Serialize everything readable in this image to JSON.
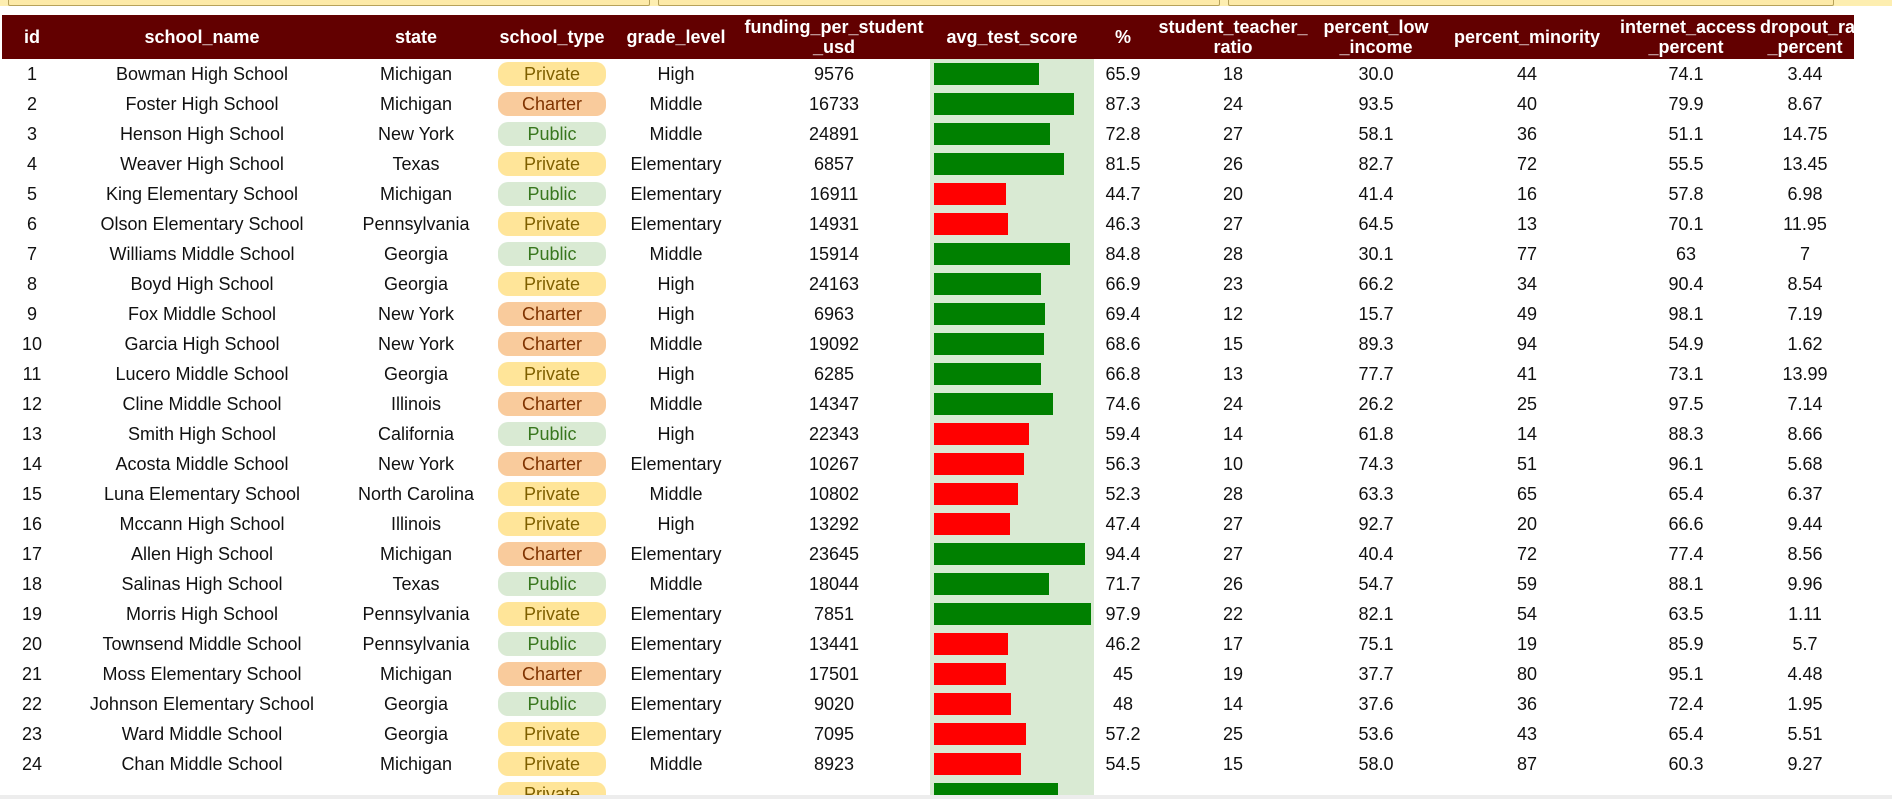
{
  "colors": {
    "header_bg": "#620000",
    "bar_pass": "#008000",
    "bar_fail": "#ff0000",
    "bar_track": "#d9ead3",
    "pill_private": "#ffe599",
    "pill_charter": "#f9cb9c",
    "pill_public": "#d9ead3",
    "text_private": "#7f6000",
    "text_charter": "#7f3300",
    "text_public": "#38761d"
  },
  "table": {
    "headers": [
      {
        "line1": "id",
        "line2": ""
      },
      {
        "line1": "school_name",
        "line2": ""
      },
      {
        "line1": "state",
        "line2": ""
      },
      {
        "line1": "school_type",
        "line2": ""
      },
      {
        "line1": "grade_level",
        "line2": ""
      },
      {
        "line1": "funding_per_student",
        "line2": "_usd"
      },
      {
        "line1": "avg_test_score",
        "line2": ""
      },
      {
        "line1": "%",
        "line2": ""
      },
      {
        "line1": "student_teacher_",
        "line2": "ratio"
      },
      {
        "line1": "percent_low",
        "line2": "_income"
      },
      {
        "line1": "percent_minority",
        "line2": ""
      },
      {
        "line1": "internet_access",
        "line2": "_percent"
      },
      {
        "line1": "dropout_rate",
        "line2": "_percent"
      }
    ],
    "rows": [
      {
        "id": "1",
        "school_name": "Bowman High School",
        "state": "Michigan",
        "school_type": "Private",
        "grade_level": "High",
        "funding": "9576",
        "score": 65.9,
        "pct": "65.9",
        "ratio": "18",
        "low_income": "30.0",
        "minority": "44",
        "internet": "74.1",
        "dropout": "3.44"
      },
      {
        "id": "2",
        "school_name": "Foster High School",
        "state": "Michigan",
        "school_type": "Charter",
        "grade_level": "Middle",
        "funding": "16733",
        "score": 87.3,
        "pct": "87.3",
        "ratio": "24",
        "low_income": "93.5",
        "minority": "40",
        "internet": "79.9",
        "dropout": "8.67"
      },
      {
        "id": "3",
        "school_name": "Henson High School",
        "state": "New York",
        "school_type": "Public",
        "grade_level": "Middle",
        "funding": "24891",
        "score": 72.8,
        "pct": "72.8",
        "ratio": "27",
        "low_income": "58.1",
        "minority": "36",
        "internet": "51.1",
        "dropout": "14.75"
      },
      {
        "id": "4",
        "school_name": "Weaver High School",
        "state": "Texas",
        "school_type": "Private",
        "grade_level": "Elementary",
        "funding": "6857",
        "score": 81.5,
        "pct": "81.5",
        "ratio": "26",
        "low_income": "82.7",
        "minority": "72",
        "internet": "55.5",
        "dropout": "13.45"
      },
      {
        "id": "5",
        "school_name": "King Elementary School",
        "state": "Michigan",
        "school_type": "Public",
        "grade_level": "Elementary",
        "funding": "16911",
        "score": 44.7,
        "pct": "44.7",
        "ratio": "20",
        "low_income": "41.4",
        "minority": "16",
        "internet": "57.8",
        "dropout": "6.98"
      },
      {
        "id": "6",
        "school_name": "Olson Elementary School",
        "state": "Pennsylvania",
        "school_type": "Private",
        "grade_level": "Elementary",
        "funding": "14931",
        "score": 46.3,
        "pct": "46.3",
        "ratio": "27",
        "low_income": "64.5",
        "minority": "13",
        "internet": "70.1",
        "dropout": "11.95"
      },
      {
        "id": "7",
        "school_name": "Williams Middle School",
        "state": "Georgia",
        "school_type": "Public",
        "grade_level": "Middle",
        "funding": "15914",
        "score": 84.8,
        "pct": "84.8",
        "ratio": "28",
        "low_income": "30.1",
        "minority": "77",
        "internet": "63",
        "dropout": "7"
      },
      {
        "id": "8",
        "school_name": "Boyd High School",
        "state": "Georgia",
        "school_type": "Private",
        "grade_level": "High",
        "funding": "24163",
        "score": 66.9,
        "pct": "66.9",
        "ratio": "23",
        "low_income": "66.2",
        "minority": "34",
        "internet": "90.4",
        "dropout": "8.54"
      },
      {
        "id": "9",
        "school_name": "Fox Middle School",
        "state": "New York",
        "school_type": "Charter",
        "grade_level": "High",
        "funding": "6963",
        "score": 69.4,
        "pct": "69.4",
        "ratio": "12",
        "low_income": "15.7",
        "minority": "49",
        "internet": "98.1",
        "dropout": "7.19"
      },
      {
        "id": "10",
        "school_name": "Garcia High School",
        "state": "New York",
        "school_type": "Charter",
        "grade_level": "Middle",
        "funding": "19092",
        "score": 68.6,
        "pct": "68.6",
        "ratio": "15",
        "low_income": "89.3",
        "minority": "94",
        "internet": "54.9",
        "dropout": "1.62"
      },
      {
        "id": "11",
        "school_name": "Lucero Middle School",
        "state": "Georgia",
        "school_type": "Private",
        "grade_level": "High",
        "funding": "6285",
        "score": 66.8,
        "pct": "66.8",
        "ratio": "13",
        "low_income": "77.7",
        "minority": "41",
        "internet": "73.1",
        "dropout": "13.99"
      },
      {
        "id": "12",
        "school_name": "Cline Middle School",
        "state": "Illinois",
        "school_type": "Charter",
        "grade_level": "Middle",
        "funding": "14347",
        "score": 74.6,
        "pct": "74.6",
        "ratio": "24",
        "low_income": "26.2",
        "minority": "25",
        "internet": "97.5",
        "dropout": "7.14"
      },
      {
        "id": "13",
        "school_name": "Smith High School",
        "state": "California",
        "school_type": "Public",
        "grade_level": "High",
        "funding": "22343",
        "score": 59.4,
        "pct": "59.4",
        "ratio": "14",
        "low_income": "61.8",
        "minority": "14",
        "internet": "88.3",
        "dropout": "8.66"
      },
      {
        "id": "14",
        "school_name": "Acosta Middle School",
        "state": "New York",
        "school_type": "Charter",
        "grade_level": "Elementary",
        "funding": "10267",
        "score": 56.3,
        "pct": "56.3",
        "ratio": "10",
        "low_income": "74.3",
        "minority": "51",
        "internet": "96.1",
        "dropout": "5.68"
      },
      {
        "id": "15",
        "school_name": "Luna Elementary School",
        "state": "North Carolina",
        "school_type": "Private",
        "grade_level": "Middle",
        "funding": "10802",
        "score": 52.3,
        "pct": "52.3",
        "ratio": "28",
        "low_income": "63.3",
        "minority": "65",
        "internet": "65.4",
        "dropout": "6.37"
      },
      {
        "id": "16",
        "school_name": "Mccann High School",
        "state": "Illinois",
        "school_type": "Private",
        "grade_level": "High",
        "funding": "13292",
        "score": 47.4,
        "pct": "47.4",
        "ratio": "27",
        "low_income": "92.7",
        "minority": "20",
        "internet": "66.6",
        "dropout": "9.44"
      },
      {
        "id": "17",
        "school_name": "Allen High School",
        "state": "Michigan",
        "school_type": "Charter",
        "grade_level": "Elementary",
        "funding": "23645",
        "score": 94.4,
        "pct": "94.4",
        "ratio": "27",
        "low_income": "40.4",
        "minority": "72",
        "internet": "77.4",
        "dropout": "8.56"
      },
      {
        "id": "18",
        "school_name": "Salinas High School",
        "state": "Texas",
        "school_type": "Public",
        "grade_level": "Middle",
        "funding": "18044",
        "score": 71.7,
        "pct": "71.7",
        "ratio": "26",
        "low_income": "54.7",
        "minority": "59",
        "internet": "88.1",
        "dropout": "9.96"
      },
      {
        "id": "19",
        "school_name": "Morris High School",
        "state": "Pennsylvania",
        "school_type": "Private",
        "grade_level": "Elementary",
        "funding": "7851",
        "score": 97.9,
        "pct": "97.9",
        "ratio": "22",
        "low_income": "82.1",
        "minority": "54",
        "internet": "63.5",
        "dropout": "1.11"
      },
      {
        "id": "20",
        "school_name": "Townsend Middle School",
        "state": "Pennsylvania",
        "school_type": "Public",
        "grade_level": "Elementary",
        "funding": "13441",
        "score": 46.2,
        "pct": "46.2",
        "ratio": "17",
        "low_income": "75.1",
        "minority": "19",
        "internet": "85.9",
        "dropout": "5.7"
      },
      {
        "id": "21",
        "school_name": "Moss Elementary School",
        "state": "Michigan",
        "school_type": "Charter",
        "grade_level": "Elementary",
        "funding": "17501",
        "score": 45,
        "pct": "45",
        "ratio": "19",
        "low_income": "37.7",
        "minority": "80",
        "internet": "95.1",
        "dropout": "4.48"
      },
      {
        "id": "22",
        "school_name": "Johnson Elementary School",
        "state": "Georgia",
        "school_type": "Public",
        "grade_level": "Elementary",
        "funding": "9020",
        "score": 48,
        "pct": "48",
        "ratio": "14",
        "low_income": "37.6",
        "minority": "36",
        "internet": "72.4",
        "dropout": "1.95"
      },
      {
        "id": "23",
        "school_name": "Ward Middle School",
        "state": "Georgia",
        "school_type": "Private",
        "grade_level": "Elementary",
        "funding": "7095",
        "score": 57.2,
        "pct": "57.2",
        "ratio": "25",
        "low_income": "53.6",
        "minority": "43",
        "internet": "65.4",
        "dropout": "5.51"
      },
      {
        "id": "24",
        "school_name": "Chan Middle School",
        "state": "Michigan",
        "school_type": "Private",
        "grade_level": "Middle",
        "funding": "8923",
        "score": 54.5,
        "pct": "54.5",
        "ratio": "15",
        "low_income": "58.0",
        "minority": "87",
        "internet": "60.3",
        "dropout": "9.27"
      },
      {
        "id": "",
        "school_name": "",
        "state": "",
        "school_type": "Private",
        "grade_level": "",
        "funding": "",
        "score": 77.5,
        "pct": "",
        "ratio": "",
        "low_income": "",
        "minority": "",
        "internet": "",
        "dropout": ""
      }
    ]
  }
}
